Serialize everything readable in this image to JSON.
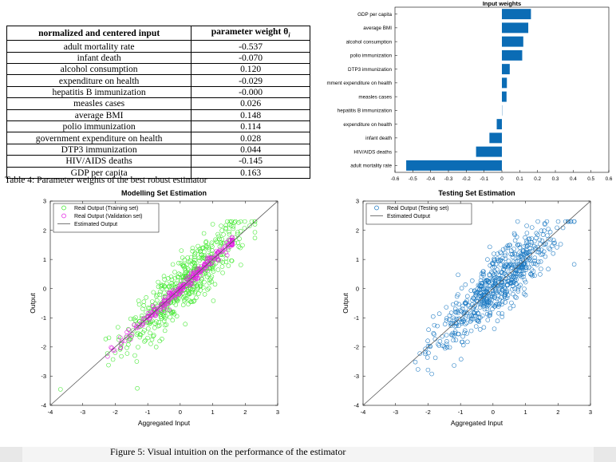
{
  "table": {
    "headers": [
      "normalized and centered input",
      "parameter weight θ"
    ],
    "header_subscript": "i",
    "rows": [
      [
        "adult mortality rate",
        "-0.537"
      ],
      [
        "infant death",
        "-0.070"
      ],
      [
        "alcohol consumption",
        "0.120"
      ],
      [
        "expenditure on health",
        "-0.029"
      ],
      [
        "hepatitis B immunization",
        "-0.000"
      ],
      [
        "measles cases",
        "0.026"
      ],
      [
        "average BMI",
        "0.148"
      ],
      [
        "polio immunization",
        "0.114"
      ],
      [
        "government expenditure on health",
        "0.028"
      ],
      [
        "DTP3 immunization",
        "0.044"
      ],
      [
        "HIV/AIDS deaths",
        "-0.145"
      ],
      [
        "GDP per capita",
        "0.163"
      ]
    ],
    "caption": "Table 4: Parameter weights of the best robust estimator"
  },
  "figure_caption": "Figure 5: Visual intuition on the performance of the estimator",
  "colors": {
    "bar": "#0b6cb5",
    "training": "#3ee82c",
    "validation": "#e21fe3",
    "testing": "#1a78c2",
    "estimated": "#555555"
  },
  "chart_data": [
    {
      "type": "bar",
      "orientation": "horizontal",
      "title": "Input weights",
      "categories": [
        "adult mortality rate",
        "HIV/AIDS deaths",
        "infant death",
        "expenditure on health",
        "hepatitis B immunization",
        "measles cases",
        "mment expenditure on health",
        "DTP3 immunization",
        "polio immunization",
        "alcohol consumption",
        "average BMI",
        "GDP per capita"
      ],
      "values": [
        -0.537,
        -0.145,
        -0.07,
        -0.029,
        -0.0,
        0.026,
        0.028,
        0.044,
        0.114,
        0.12,
        0.148,
        0.163
      ],
      "xlim": [
        -0.6,
        0.6
      ],
      "xticks": [
        "-0.6",
        "-0.5",
        "-0.4",
        "-0.3",
        "-0.2",
        "-0.1",
        "0",
        "0.1",
        "0.2",
        "0.3",
        "0.4",
        "0.5",
        "0.6"
      ]
    },
    {
      "type": "scatter",
      "title": "Modelling Set Estimation",
      "xlabel": "Aggregated Input",
      "ylabel": "Output",
      "xlim": [
        -4,
        3
      ],
      "ylim": [
        -4,
        3
      ],
      "xticks": [
        "-4",
        "-3",
        "-2",
        "-1",
        "0",
        "1",
        "2",
        "3"
      ],
      "yticks": [
        "-4",
        "-3",
        "-2",
        "-1",
        "0",
        "1",
        "2",
        "3"
      ],
      "legend_position": "top-left",
      "series": [
        {
          "name": "Real Output (Training set)",
          "marker": "circle",
          "approx_points": 520,
          "trend": "y ≈ x with spread ≈ 0.5",
          "x_range": [
            -3.8,
            2.3
          ]
        },
        {
          "name": "Real Output (Validation set)",
          "marker": "circle",
          "approx_points": 260,
          "trend": "y ≈ x with spread ≈ 0.1",
          "x_range": [
            -3.0,
            1.6
          ]
        },
        {
          "name": "Estimated Output",
          "type": "line",
          "x": [
            -4,
            3
          ],
          "y": [
            -4,
            3
          ]
        }
      ]
    },
    {
      "type": "scatter",
      "title": "Testing Set Estimation",
      "xlabel": "Aggregated Input",
      "ylabel": "Output",
      "xlim": [
        -4,
        3
      ],
      "ylim": [
        -4,
        3
      ],
      "xticks": [
        "-4",
        "-3",
        "-2",
        "-1",
        "0",
        "1",
        "2",
        "3"
      ],
      "yticks": [
        "-4",
        "-3",
        "-2",
        "-1",
        "0",
        "1",
        "2",
        "3"
      ],
      "legend_position": "top-left",
      "series": [
        {
          "name": "Real Output (Testing set)",
          "marker": "circle",
          "approx_points": 650,
          "trend": "y ≈ x with spread ≈ 0.5",
          "x_range": [
            -3.8,
            2.5
          ]
        },
        {
          "name": "Estimated Output",
          "type": "line",
          "x": [
            -4,
            3
          ],
          "y": [
            -4,
            3
          ]
        }
      ]
    }
  ]
}
